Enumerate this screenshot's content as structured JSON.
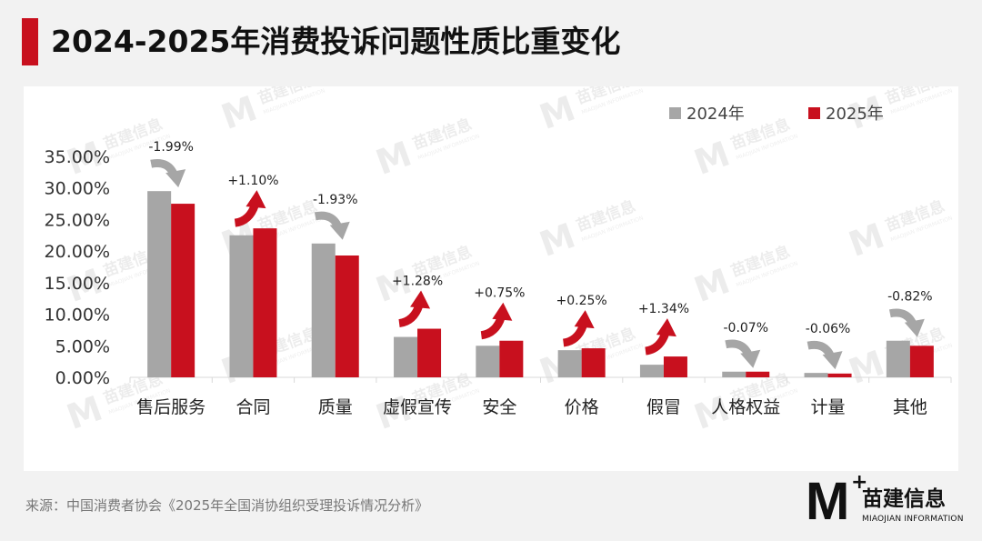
{
  "title": "2024-2025年消费投诉问题性质比重变化",
  "source": "来源：中国消费者协会《2025年全国消协组织受理投诉情况分析》",
  "watermark": {
    "cn": "苗建信息",
    "en": "MIAOJIAN INFORMATION",
    "mark": "M"
  },
  "logo": {
    "mark": "M",
    "plus": "+",
    "cn": "苗建信息",
    "en": "MIAOJIAN INFORMATION"
  },
  "colors": {
    "s2024": "#a6a6a6",
    "s2025": "#c8101e",
    "accent": "#c8101e",
    "up_arrow": "#c8101e",
    "down_arrow": "#a6a6a6"
  },
  "chart_data": {
    "type": "bar",
    "title": "2024-2025年消费投诉问题性质比重变化",
    "categories": [
      "售后服务",
      "合同",
      "质量",
      "虚假宣传",
      "安全",
      "价格",
      "假冒",
      "人格权益",
      "计量",
      "其他"
    ],
    "series": [
      {
        "name": "2024年",
        "values": [
          29.5,
          22.5,
          21.2,
          6.4,
          5.0,
          4.3,
          2.0,
          0.9,
          0.7,
          5.8
        ]
      },
      {
        "name": "2025年",
        "values": [
          27.5,
          23.6,
          19.3,
          7.7,
          5.8,
          4.6,
          3.3,
          0.9,
          0.6,
          5.0
        ]
      }
    ],
    "change_labels": [
      "-1.99%",
      "+1.10%",
      "-1.93%",
      "+1.28%",
      "+0.75%",
      "+0.25%",
      "+1.34%",
      "-0.07%",
      "-0.06%",
      "-0.82%"
    ],
    "change_direction": [
      "down",
      "up",
      "down",
      "up",
      "up",
      "up",
      "up",
      "down",
      "down",
      "down"
    ],
    "yticks": [
      "0.00%",
      "5.00%",
      "10.00%",
      "15.00%",
      "20.00%",
      "25.00%",
      "30.00%",
      "35.00%"
    ],
    "ylim": [
      0,
      35
    ],
    "grid": false,
    "legend_position": "top-right"
  }
}
